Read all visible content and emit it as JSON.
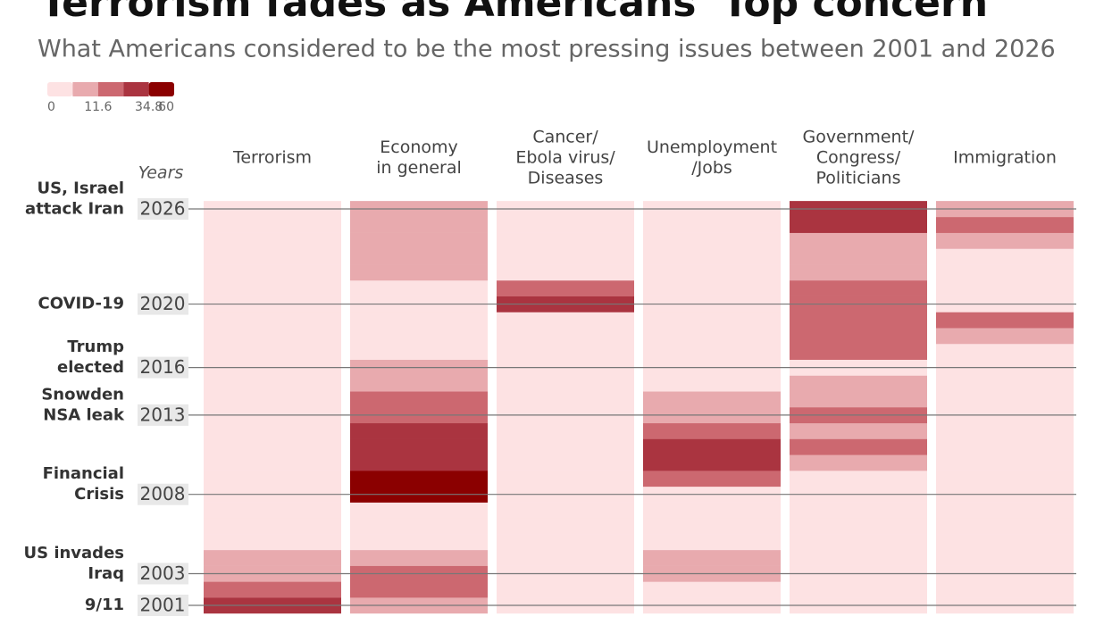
{
  "chart_data": {
    "type": "heatmap",
    "title": "Terrorism fades as Americans' Top concern",
    "subtitle": "What Americans considered to be the most pressing issues between 2001 and 2026",
    "y_label": "Years",
    "categories": [
      [
        "Terrorism"
      ],
      [
        "Economy",
        "in general"
      ],
      [
        "Cancer/",
        "Ebola virus/",
        "Diseases"
      ],
      [
        "Unemployment",
        "/Jobs"
      ],
      [
        "Government/",
        "Congress/",
        "Politicians"
      ],
      [
        "Immigration"
      ]
    ],
    "y": [
      2001,
      2002,
      2003,
      2004,
      2005,
      2006,
      2007,
      2008,
      2009,
      2010,
      2011,
      2012,
      2013,
      2014,
      2015,
      2016,
      2017,
      2018,
      2019,
      2020,
      2021,
      2022,
      2023,
      2024,
      2025,
      2026
    ],
    "values": [
      [
        30,
        18,
        8,
        7,
        5,
        4,
        3,
        2,
        2,
        1,
        1,
        1,
        1,
        2,
        4,
        3,
        2,
        1,
        1,
        1,
        1,
        1,
        1,
        1,
        1,
        2
      ],
      [
        10,
        20,
        15,
        8,
        5,
        4,
        5,
        45,
        40,
        30,
        33,
        28,
        18,
        15,
        10,
        8,
        4,
        3,
        3,
        4,
        5,
        10,
        9,
        11,
        8,
        10
      ],
      [
        1,
        1,
        1,
        1,
        1,
        1,
        1,
        1,
        1,
        1,
        1,
        1,
        1,
        2,
        1,
        1,
        1,
        1,
        1,
        25,
        14,
        2,
        1,
        1,
        1,
        1
      ],
      [
        2,
        4,
        8,
        7,
        4,
        2,
        3,
        5,
        14,
        25,
        30,
        20,
        10,
        8,
        5,
        3,
        2,
        2,
        2,
        4,
        3,
        2,
        2,
        2,
        2,
        2
      ],
      [
        3,
        3,
        3,
        3,
        4,
        4,
        5,
        4,
        5,
        8,
        12,
        10,
        16,
        10,
        9,
        5,
        18,
        20,
        22,
        15,
        20,
        10,
        9,
        11,
        25,
        24
      ],
      [
        2,
        2,
        3,
        3,
        3,
        5,
        3,
        2,
        2,
        2,
        2,
        2,
        2,
        3,
        3,
        3,
        3,
        7,
        12,
        4,
        3,
        3,
        4,
        10,
        14,
        8
      ]
    ],
    "ylim": [
      2000.5,
      2026.5
    ],
    "yticks": [
      2001,
      2003,
      2008,
      2013,
      2016,
      2020,
      2026
    ],
    "color_bins": [
      0,
      5.8,
      11.6,
      23.2,
      34.8,
      60
    ],
    "colors": [
      "#fde2e3",
      "#e8aaae",
      "#cc6870",
      "#aa3440",
      "#8b0000"
    ],
    "legend_ticks": [
      0,
      11.6,
      34.8,
      60
    ],
    "annotations": [
      {
        "y": 2026,
        "lines": [
          "US, Israel",
          "attack Iran"
        ]
      },
      {
        "y": 2020,
        "lines": [
          "COVID-19"
        ]
      },
      {
        "y": 2016,
        "lines": [
          "Trump",
          "elected"
        ]
      },
      {
        "y": 2013,
        "lines": [
          "Snowden",
          "NSA leak"
        ]
      },
      {
        "y": 2008,
        "lines": [
          "Financial",
          "Crisis"
        ]
      },
      {
        "y": 2003,
        "lines": [
          "US invades",
          "Iraq"
        ]
      },
      {
        "y": 2001,
        "lines": [
          "9/11"
        ]
      }
    ]
  }
}
